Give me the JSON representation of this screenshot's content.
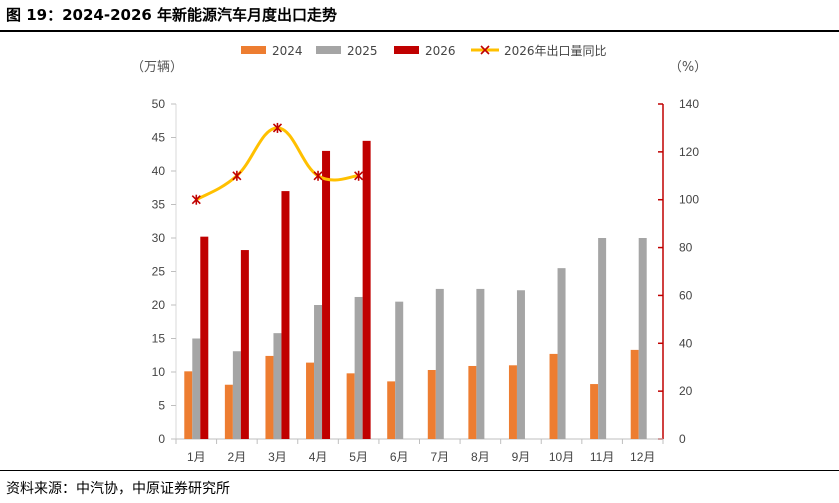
{
  "title": "图 19：2024-2026 年新能源汽车月度出口走势",
  "source": "资料来源：中汽协，中原证券研究所",
  "chart_data": {
    "type": "bar",
    "categories": [
      "1月",
      "2月",
      "3月",
      "4月",
      "5月",
      "6月",
      "7月",
      "8月",
      "9月",
      "10月",
      "11月",
      "12月"
    ],
    "series": [
      {
        "name": "2024",
        "type": "bar",
        "axis": "left",
        "color": "#ED7D31",
        "values": [
          10.1,
          8.1,
          12.4,
          11.4,
          9.8,
          8.6,
          10.3,
          10.9,
          11.0,
          12.7,
          8.2,
          13.3
        ]
      },
      {
        "name": "2025",
        "type": "bar",
        "axis": "left",
        "color": "#A5A5A5",
        "values": [
          15.0,
          13.1,
          15.8,
          20.0,
          21.2,
          20.5,
          22.4,
          22.4,
          22.2,
          25.5,
          30.0,
          30.0
        ]
      },
      {
        "name": "2026",
        "type": "bar",
        "axis": "left",
        "color": "#C00000",
        "values": [
          30.2,
          28.2,
          37.0,
          43.0,
          44.5,
          null,
          null,
          null,
          null,
          null,
          null,
          null
        ]
      },
      {
        "name": "2026年出口量同比",
        "type": "line",
        "axis": "right",
        "color": "#FFC000",
        "marker_color": "#C00000",
        "values": [
          100,
          110,
          130,
          110,
          110,
          null,
          null,
          null,
          null,
          null,
          null,
          null
        ]
      }
    ],
    "left_axis": {
      "label": "（万辆）",
      "ylim": [
        0,
        50
      ],
      "ticks": [
        0,
        5,
        10,
        15,
        20,
        25,
        30,
        35,
        40,
        45,
        50
      ]
    },
    "right_axis": {
      "label": "（%）",
      "ylim": [
        0,
        140
      ],
      "ticks": [
        0,
        20,
        40,
        60,
        80,
        100,
        120,
        140
      ]
    },
    "legend_position": "top",
    "grid": false
  }
}
